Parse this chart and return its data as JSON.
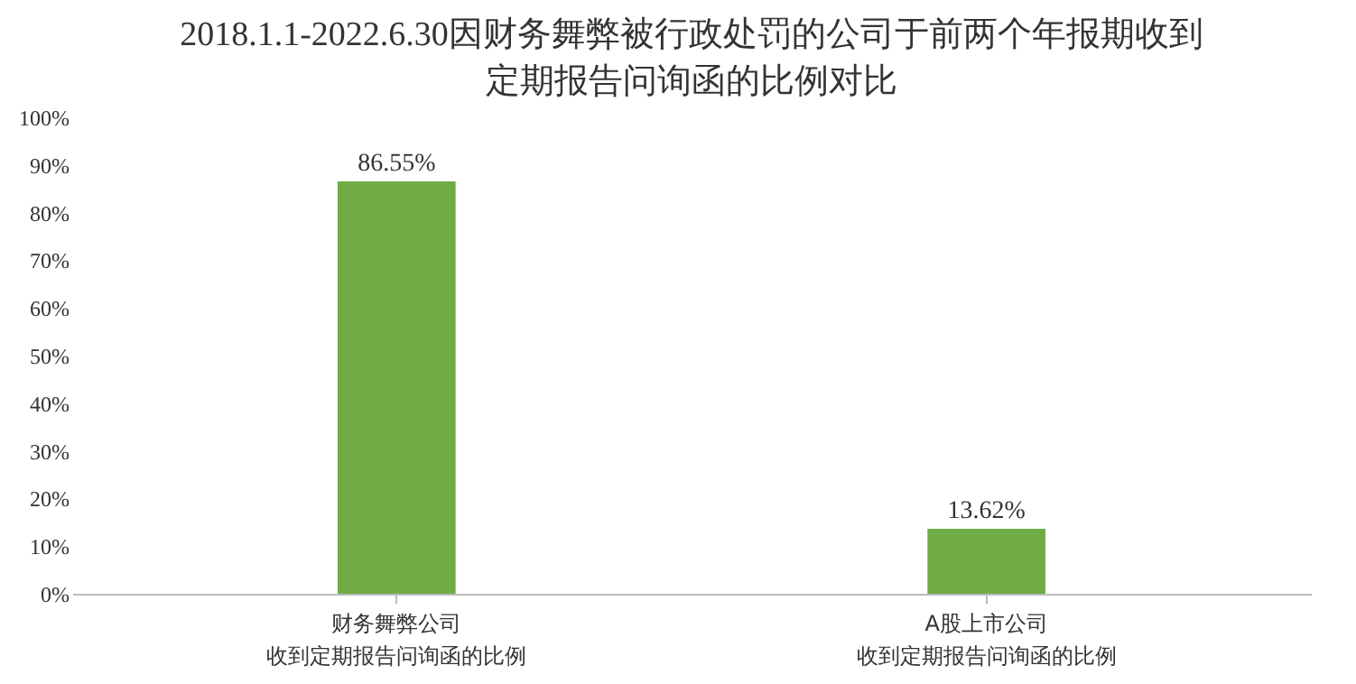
{
  "chart_data": {
    "type": "bar",
    "title": "2018.1.1-2022.6.30因财务舞弊被行政处罚的公司于前两个年报期收到定期报告问询函的比例对比",
    "categories": [
      "财务舞弊公司收到定期报告问询函的比例",
      "A股上市公司收到定期报告问询函的比例"
    ],
    "values": [
      86.55,
      13.62
    ],
    "color": "#6fac46",
    "data_labels": true,
    "value_labels": [
      "86.55%",
      "13.62%"
    ],
    "ylim": [
      0,
      100
    ],
    "yticks": [
      {
        "value": 0,
        "label": "0%"
      },
      {
        "value": 10,
        "label": "10%"
      },
      {
        "value": 20,
        "label": "20%"
      },
      {
        "value": 30,
        "label": "30%"
      },
      {
        "value": 40,
        "label": "40%"
      },
      {
        "value": 50,
        "label": "50%"
      },
      {
        "value": 60,
        "label": "60%"
      },
      {
        "value": 70,
        "label": "70%"
      },
      {
        "value": 80,
        "label": "80%"
      },
      {
        "value": 90,
        "label": "90%"
      },
      {
        "value": 100,
        "label": "100%"
      }
    ],
    "grid": false
  }
}
